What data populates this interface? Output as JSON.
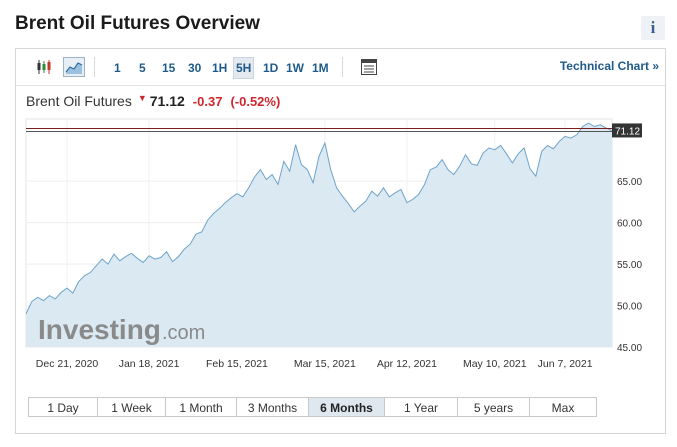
{
  "page": {
    "title": "Brent Oil Futures Overview",
    "info_label": "i"
  },
  "toolbar": {
    "chart_type_icons": [
      "candlestick-icon",
      "area-chart-icon"
    ],
    "intervals": [
      {
        "label": "1",
        "active": false
      },
      {
        "label": "5",
        "active": false
      },
      {
        "label": "15",
        "active": false
      },
      {
        "label": "30",
        "active": false
      },
      {
        "label": "1H",
        "active": false
      },
      {
        "label": "5H",
        "active": true
      },
      {
        "label": "1D",
        "active": false
      },
      {
        "label": "1W",
        "active": false
      },
      {
        "label": "1M",
        "active": false
      }
    ],
    "table_icon": "data-table-icon",
    "technical_chart_label": "Technical Chart »"
  },
  "quote": {
    "name": "Brent Oil Futures",
    "arrow": "▼",
    "price": "71.12",
    "change": "-0.37",
    "change_pct": "(-0.52%)"
  },
  "watermark": {
    "brand": "Investing",
    "suffix": ".com"
  },
  "colors": {
    "line": "#6ea3c9",
    "fill": "#dbe9f3",
    "last_price_line": "#7a1f1f",
    "down": "#d0262e",
    "link": "#1f5a8a"
  },
  "chart_data": {
    "type": "area",
    "title": "",
    "xlabel": "",
    "ylabel": "",
    "ylim": [
      45,
      72.5
    ],
    "y_ticks": [
      "45.00",
      "50.00",
      "55.00",
      "60.00",
      "65.00"
    ],
    "x_ticks": [
      "Dec 21, 2020",
      "Jan 18, 2021",
      "Feb 15, 2021",
      "Mar 15, 2021",
      "Apr 12, 2021",
      "May 10, 2021",
      "Jun 7, 2021"
    ],
    "x_tick_positions": [
      0.07,
      0.21,
      0.36,
      0.51,
      0.65,
      0.8,
      0.92
    ],
    "last_value": 71.12,
    "last_value_label": "71.12",
    "grid": true,
    "series": [
      {
        "x": [
          0.0,
          0.01,
          0.02,
          0.03,
          0.04,
          0.05,
          0.06,
          0.07,
          0.08,
          0.09,
          0.1,
          0.11,
          0.12,
          0.13,
          0.14,
          0.15,
          0.16,
          0.17,
          0.18,
          0.19,
          0.2,
          0.21,
          0.22,
          0.23,
          0.24,
          0.25,
          0.26,
          0.27,
          0.28,
          0.29,
          0.3,
          0.31,
          0.32,
          0.33,
          0.34,
          0.35,
          0.36,
          0.37,
          0.38,
          0.39,
          0.4,
          0.41,
          0.42,
          0.43,
          0.44,
          0.45,
          0.46,
          0.47,
          0.48,
          0.49,
          0.5,
          0.51,
          0.52,
          0.53,
          0.54,
          0.55,
          0.56,
          0.57,
          0.58,
          0.59,
          0.6,
          0.61,
          0.62,
          0.63,
          0.64,
          0.65,
          0.66,
          0.67,
          0.68,
          0.69,
          0.7,
          0.71,
          0.72,
          0.73,
          0.74,
          0.75,
          0.76,
          0.77,
          0.78,
          0.79,
          0.8,
          0.81,
          0.82,
          0.83,
          0.84,
          0.85,
          0.86,
          0.87,
          0.88,
          0.89,
          0.9,
          0.91,
          0.92,
          0.93,
          0.94,
          0.95,
          0.96,
          0.97,
          0.98,
          0.99,
          1.0
        ],
        "values": [
          49.0,
          50.5,
          51.0,
          50.6,
          51.2,
          50.8,
          51.6,
          52.1,
          51.5,
          52.9,
          53.6,
          54.0,
          54.8,
          55.6,
          55.0,
          56.2,
          55.4,
          55.9,
          56.3,
          55.7,
          55.2,
          56.0,
          55.6,
          55.8,
          56.5,
          55.3,
          55.9,
          56.8,
          57.4,
          58.6,
          58.9,
          60.3,
          61.1,
          61.7,
          62.4,
          63.0,
          63.5,
          63.1,
          64.2,
          65.5,
          66.4,
          65.2,
          65.8,
          64.6,
          67.4,
          66.2,
          69.4,
          67.0,
          66.4,
          64.8,
          68.0,
          69.6,
          66.4,
          64.2,
          63.2,
          62.3,
          61.3,
          62.0,
          62.6,
          63.8,
          63.2,
          64.2,
          63.1,
          63.6,
          64.0,
          62.4,
          62.8,
          63.4,
          64.6,
          66.4,
          66.7,
          67.6,
          66.4,
          65.8,
          66.8,
          68.2,
          67.1,
          66.9,
          68.4,
          69.0,
          68.8,
          69.3,
          68.3,
          67.2,
          68.3,
          69.0,
          66.5,
          65.6,
          68.6,
          69.3,
          68.9,
          69.8,
          70.4,
          70.2,
          70.6,
          71.6,
          72.0,
          71.6,
          71.8,
          71.4,
          71.1
        ]
      }
    ]
  },
  "range_buttons": [
    {
      "label": "1 Day",
      "active": false
    },
    {
      "label": "1 Week",
      "active": false
    },
    {
      "label": "1 Month",
      "active": false
    },
    {
      "label": "3 Months",
      "active": false
    },
    {
      "label": "6 Months",
      "active": true
    },
    {
      "label": "1 Year",
      "active": false
    },
    {
      "label": "5 years",
      "active": false
    },
    {
      "label": "Max",
      "active": false
    }
  ]
}
